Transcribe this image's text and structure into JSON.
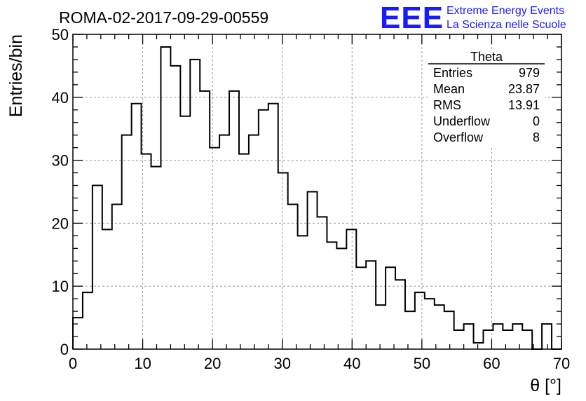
{
  "chart_data": {
    "type": "histogram",
    "title": "ROMA-02-2017-09-29-00559",
    "xlabel": "θ [°]",
    "ylabel": "Entries/bin",
    "xlim": [
      0,
      70
    ],
    "ylim": [
      0,
      50
    ],
    "x_ticks": [
      0,
      10,
      20,
      30,
      40,
      50,
      60,
      70
    ],
    "y_ticks": [
      0,
      10,
      20,
      30,
      40,
      50
    ],
    "grid": true,
    "bin_width": 1.4,
    "values": [
      5,
      9,
      26,
      19,
      23,
      34,
      39,
      31,
      29,
      48,
      45,
      37,
      46,
      41,
      32,
      34,
      41,
      31,
      34,
      38,
      39,
      28,
      23,
      18,
      25,
      21,
      17,
      16,
      19,
      13,
      14,
      7,
      13,
      11,
      6,
      9,
      8,
      7,
      6,
      3,
      4,
      1,
      3,
      4,
      3,
      4,
      3,
      0,
      4,
      0
    ]
  },
  "stats_box": {
    "name": "Theta",
    "rows": [
      {
        "label": "Entries",
        "value": "979"
      },
      {
        "label": "Mean",
        "value": "23.87"
      },
      {
        "label": "RMS",
        "value": "13.91"
      },
      {
        "label": "Underflow",
        "value": "0"
      },
      {
        "label": "Overflow",
        "value": "8"
      }
    ]
  },
  "logo": {
    "mark": "EEE",
    "line1": "Extreme Energy Events",
    "line2": "La Scienza nelle Scuole",
    "color": "#1a1aff"
  }
}
